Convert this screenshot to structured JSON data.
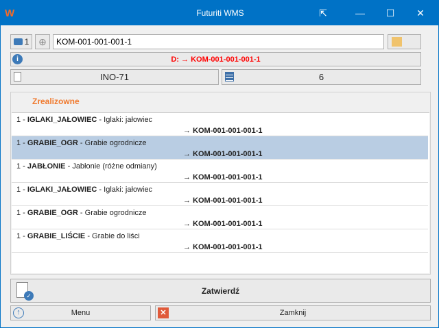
{
  "window": {
    "title": "Futuriti WMS"
  },
  "toolbar": {
    "count": "1",
    "location_value": "KOM-001-001-001-1"
  },
  "info": {
    "message": "D: → KOM-001-001-001-1",
    "color": "#ff0000"
  },
  "doc": {
    "number": "INO-71",
    "count": "6"
  },
  "list": {
    "header": "Zrealizowne",
    "header_color": "#f07a2f",
    "items": [
      {
        "qty": "1",
        "code": "IGLAKI_JAŁOWIEC",
        "name": "Iglaki: jałowiec",
        "target": "→ KOM-001-001-001-1"
      },
      {
        "qty": "1",
        "code": "GRABIE_OGR",
        "name": "Grabie ogrodnicze",
        "target": "→ KOM-001-001-001-1",
        "selected": true
      },
      {
        "qty": "1",
        "code": "JABŁONIE",
        "name": "Jabłonie (różne odmiany)",
        "target": "→ KOM-001-001-001-1"
      },
      {
        "qty": "1",
        "code": "IGLAKI_JAŁOWIEC",
        "name": "Iglaki: jałowiec",
        "target": "→ KOM-001-001-001-1"
      },
      {
        "qty": "1",
        "code": "GRABIE_OGR",
        "name": "Grabie ogrodnicze",
        "target": "→ KOM-001-001-001-1"
      },
      {
        "qty": "1",
        "code": "GRABIE_LIŚCIE",
        "name": "Grabie do liści",
        "target": "→ KOM-001-001-001-1"
      }
    ]
  },
  "buttons": {
    "confirm": "Zatwierdź",
    "menu": "Menu",
    "close": "Zamknij"
  }
}
